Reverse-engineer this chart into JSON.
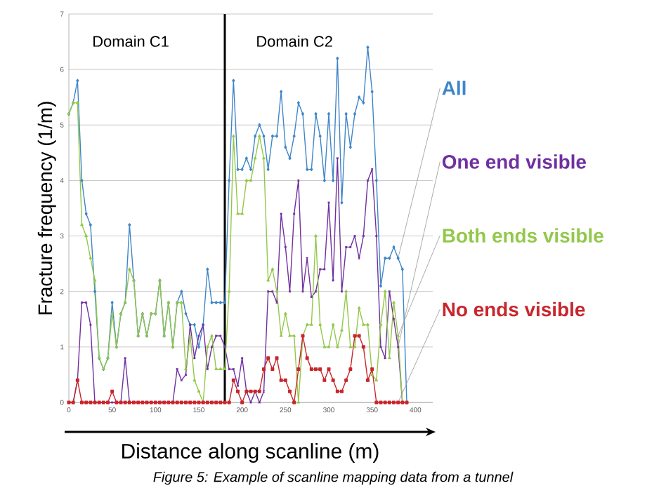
{
  "chart_data": {
    "type": "line",
    "xlabel": "Distance along scanline (m)",
    "ylabel": "Fracture frequency (1/m)",
    "x": [
      0,
      5,
      10,
      15,
      20,
      25,
      30,
      35,
      40,
      45,
      50,
      55,
      60,
      65,
      70,
      75,
      80,
      85,
      90,
      95,
      100,
      105,
      110,
      115,
      120,
      125,
      130,
      135,
      140,
      145,
      150,
      155,
      160,
      165,
      170,
      175,
      180,
      185,
      190,
      195,
      200,
      205,
      210,
      215,
      220,
      225,
      230,
      235,
      240,
      245,
      250,
      255,
      260,
      265,
      270,
      275,
      280,
      285,
      290,
      295,
      300,
      305,
      310,
      315,
      320,
      325,
      330,
      335,
      340,
      345,
      350,
      355,
      360,
      365,
      370,
      375,
      380,
      385,
      390
    ],
    "series": [
      {
        "name": "All",
        "color": "#3f86c8",
        "marker": "diamond",
        "values": [
          5.2,
          5.4,
          5.8,
          4.0,
          3.4,
          3.2,
          2.0,
          0.8,
          0.6,
          0.8,
          1.8,
          1.0,
          1.6,
          1.8,
          3.2,
          2.2,
          1.2,
          1.6,
          1.2,
          1.6,
          1.6,
          2.2,
          1.2,
          1.8,
          1.0,
          1.8,
          2.0,
          1.6,
          1.4,
          1.4,
          1.0,
          1.4,
          2.4,
          1.8,
          1.8,
          1.8,
          1.8,
          4.0,
          5.8,
          4.2,
          4.2,
          4.4,
          4.2,
          4.8,
          5.0,
          4.8,
          4.2,
          4.8,
          4.8,
          5.6,
          4.6,
          4.4,
          4.8,
          5.4,
          5.2,
          4.2,
          4.2,
          5.2,
          4.8,
          4.0,
          5.2,
          4.0,
          6.2,
          3.6,
          5.2,
          4.6,
          5.2,
          5.5,
          5.4,
          6.4,
          5.6,
          4.0,
          2.1,
          2.6,
          2.6,
          2.8,
          2.6,
          2.4,
          0
        ]
      },
      {
        "name": "One end visible",
        "color": "#7030a0",
        "marker": "cross",
        "values": [
          0,
          0,
          0.4,
          1.8,
          1.8,
          1.4,
          0,
          0,
          0,
          0,
          0,
          0,
          0,
          0.8,
          0,
          0,
          0,
          0,
          0,
          0,
          0,
          0,
          0,
          0,
          0,
          0.6,
          0.4,
          0.5,
          1.4,
          0.8,
          1.2,
          1.4,
          0.6,
          1.0,
          1.2,
          1.2,
          1.0,
          0.6,
          0.6,
          0.3,
          0.8,
          0.2,
          0,
          0.2,
          0,
          0.2,
          2.0,
          2.0,
          1.8,
          3.4,
          2.8,
          2.0,
          3.4,
          4.0,
          2.0,
          2.6,
          1.9,
          2.0,
          2.4,
          2.4,
          3.6,
          2.2,
          4.4,
          2.0,
          2.8,
          2.8,
          3.0,
          2.6,
          3.0,
          4.0,
          4.2,
          3.0,
          1.0,
          0.8,
          2.0,
          1.5,
          1.0,
          0,
          0
        ]
      },
      {
        "name": "Both ends visible",
        "color": "#92c84a",
        "marker": "triangle",
        "values": [
          5.2,
          5.4,
          5.4,
          3.2,
          3.0,
          2.6,
          2.2,
          0.8,
          0.6,
          0.8,
          1.6,
          1.0,
          1.6,
          1.8,
          2.4,
          2.2,
          1.2,
          1.6,
          1.2,
          1.6,
          1.6,
          2.2,
          1.2,
          1.8,
          1.0,
          1.8,
          1.8,
          0.6,
          1.2,
          0.4,
          0.2,
          0,
          1.0,
          1.2,
          0.6,
          0.6,
          0.6,
          2.0,
          4.8,
          3.4,
          3.4,
          4.0,
          4.0,
          4.4,
          4.8,
          4.4,
          2.2,
          2.4,
          2.0,
          1.2,
          1.6,
          1.2,
          1.2,
          0,
          1.2,
          1.4,
          1.4,
          3.0,
          1.4,
          1.0,
          1.0,
          1.4,
          1.0,
          1.3,
          2.0,
          1.0,
          1.0,
          1.7,
          1.4,
          1.4,
          0.5,
          0.4,
          1.4,
          2.0,
          0.8,
          1.8,
          1.2,
          0,
          0
        ]
      },
      {
        "name": "No ends visible",
        "color": "#c8262c",
        "marker": "square",
        "values": [
          0,
          0,
          0.4,
          0,
          0,
          0,
          0,
          0,
          0,
          0,
          0.2,
          0,
          0,
          0,
          0,
          0,
          0,
          0,
          0,
          0,
          0,
          0,
          0,
          0,
          0,
          0,
          0,
          0,
          0,
          0,
          0,
          0,
          0,
          0,
          0,
          0,
          0,
          0,
          0.4,
          0.2,
          0,
          0.2,
          0.2,
          0.2,
          0.2,
          0.6,
          0.8,
          0.6,
          0.8,
          0.4,
          0.4,
          0.2,
          0,
          0.6,
          1.2,
          0.8,
          0.6,
          0.6,
          0.6,
          0.4,
          0.6,
          0.4,
          0.2,
          0.2,
          0.4,
          0.6,
          1.2,
          1.2,
          1.0,
          0.4,
          0.6,
          0,
          0,
          0,
          0,
          0,
          0,
          0,
          0
        ]
      }
    ],
    "xlim": [
      0,
      420
    ],
    "ylim": [
      0,
      7
    ],
    "xticks": [
      0,
      50,
      100,
      150,
      200,
      250,
      300,
      350,
      400
    ],
    "yticks": [
      0,
      1,
      2,
      3,
      4,
      5,
      6,
      7
    ],
    "grid": "y",
    "ref_lines": [
      {
        "axis": "x",
        "value": 180,
        "color": "#000000"
      }
    ],
    "annotations": [
      "Domain C1",
      "Domain C2",
      "Figure 5: Example of scanline mapping data from a tunnel"
    ]
  }
}
